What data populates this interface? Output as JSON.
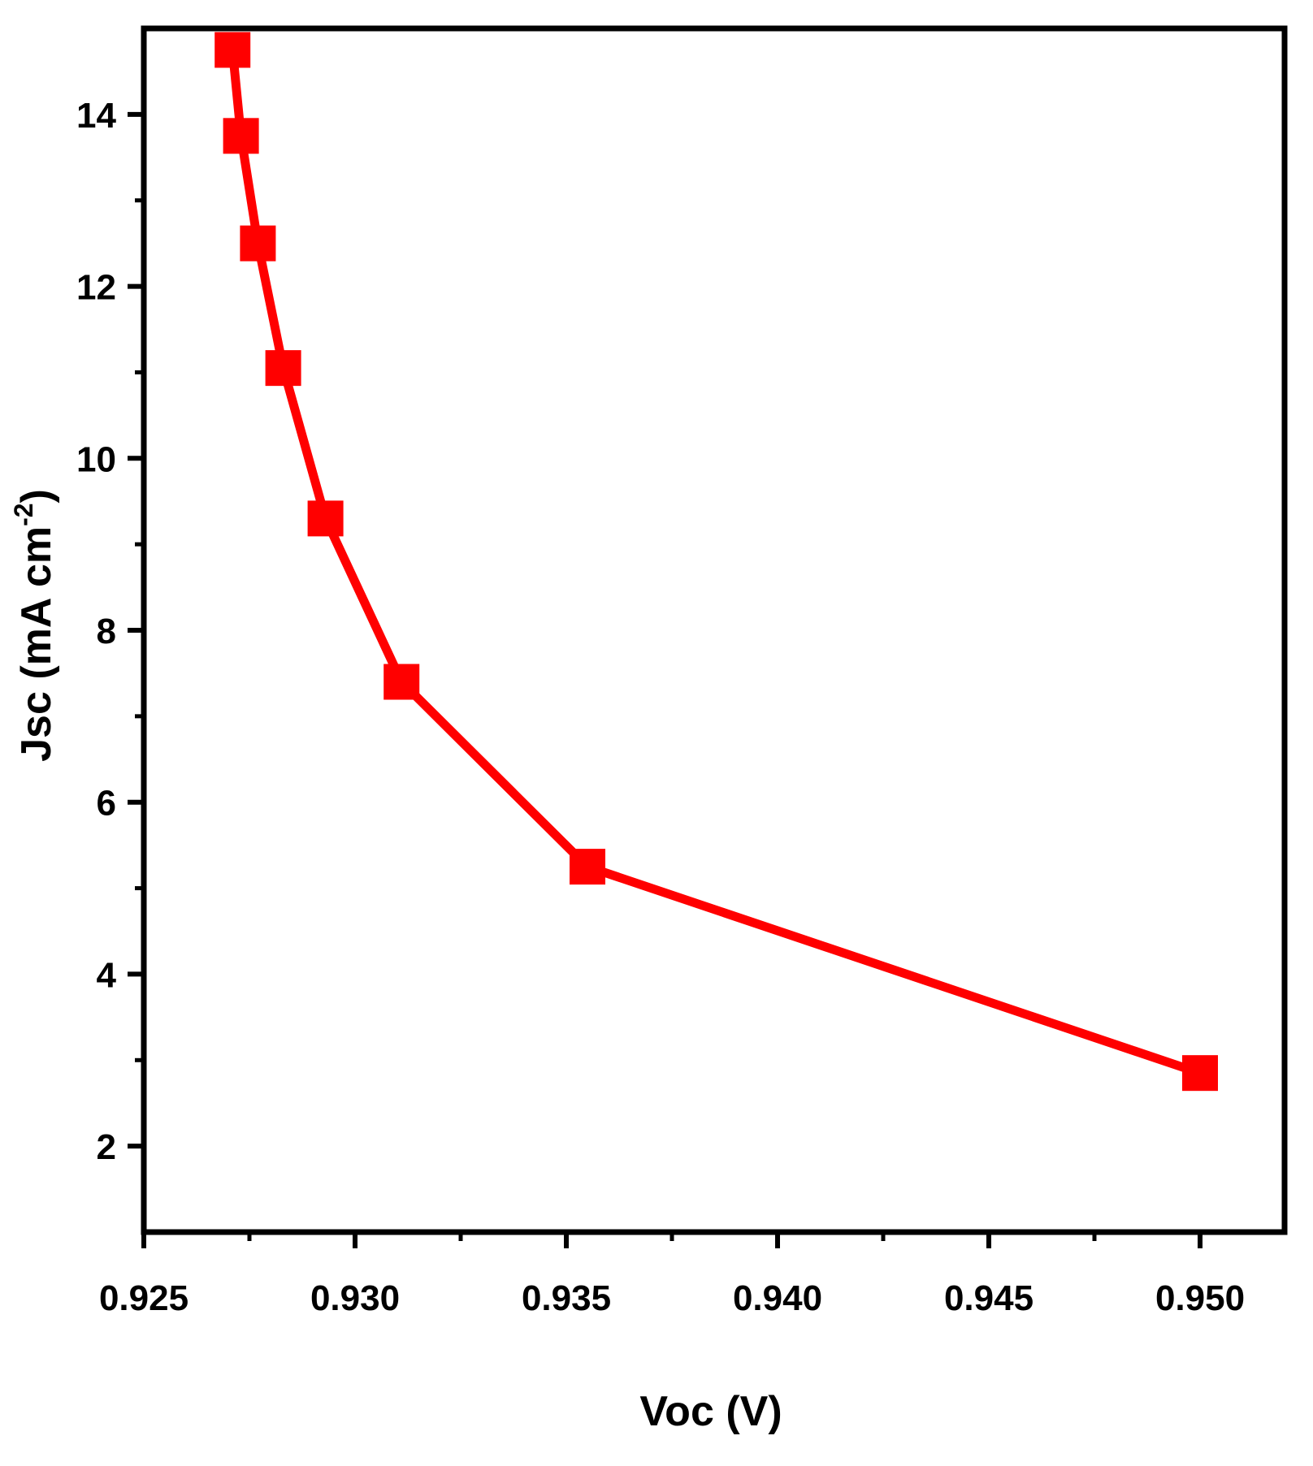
{
  "chart_data": {
    "type": "line",
    "xlabel": "Voc (V)",
    "ylabel": {
      "main": "Jsc (mA cm",
      "superscript": "-2",
      "close": ")"
    },
    "xlim": [
      0.925,
      0.952
    ],
    "ylim": [
      1,
      15
    ],
    "x_ticks": [
      0.925,
      0.93,
      0.935,
      0.94,
      0.945,
      0.95
    ],
    "x_tick_labels": [
      "0.925",
      "0.930",
      "0.935",
      "0.940",
      "0.945",
      "0.950"
    ],
    "y_ticks": [
      2,
      4,
      6,
      8,
      10,
      12,
      14
    ],
    "y_tick_labels": [
      "2",
      "4",
      "6",
      "8",
      "10",
      "12",
      "14"
    ],
    "series": [
      {
        "color": "#ff0000",
        "marker": "square",
        "x": [
          0.9271,
          0.9273,
          0.9277,
          0.9283,
          0.9293,
          0.9311,
          0.9355,
          0.95
        ],
        "y": [
          14.75,
          13.75,
          12.5,
          11.05,
          9.3,
          7.4,
          5.25,
          2.85
        ]
      }
    ],
    "grid": false,
    "legend": "none"
  }
}
